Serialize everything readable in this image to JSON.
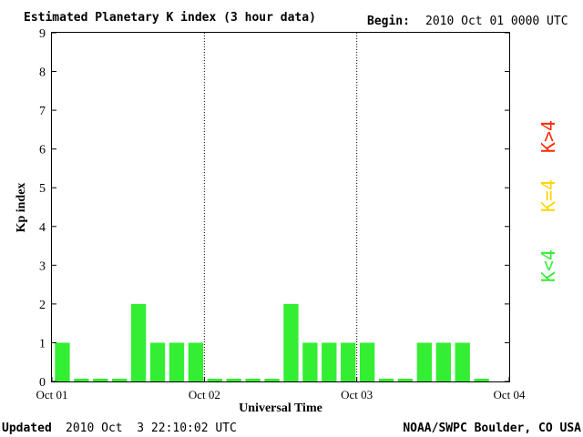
{
  "header": {
    "title": "Estimated Planetary K index (3 hour data)",
    "begin_label": "Begin:",
    "begin_value": "2010 Oct 01 0000 UTC"
  },
  "footer": {
    "updated_label": "Updated",
    "updated_value": "2010 Oct  3 22:10:02 UTC",
    "source": "NOAA/SWPC Boulder, CO USA"
  },
  "legend": [
    {
      "label": "K>4",
      "color": "#ff2a00"
    },
    {
      "label": "K=4",
      "color": "#ffd400"
    },
    {
      "label": "K<4",
      "color": "#33ee33"
    }
  ],
  "chart_data": {
    "type": "bar",
    "title": "Estimated Planetary K index (3 hour data)",
    "xlabel": "Universal Time",
    "ylabel": "Kp index",
    "ylim": [
      0,
      9
    ],
    "yticks": [
      "0",
      "1",
      "2",
      "3",
      "4",
      "5",
      "6",
      "7",
      "8",
      "9"
    ],
    "xtick_labels": [
      "Oct 01",
      "Oct 02",
      "Oct 03",
      "Oct 04"
    ],
    "bars_per_day": 8,
    "day_separators": "dotted",
    "values": [
      1,
      0,
      0,
      0,
      2,
      1,
      1,
      1,
      0,
      0,
      0,
      0,
      2,
      1,
      1,
      1,
      1,
      0,
      0,
      1,
      1,
      1,
      0
    ],
    "bar_color": "#33ee33",
    "grid": false
  }
}
